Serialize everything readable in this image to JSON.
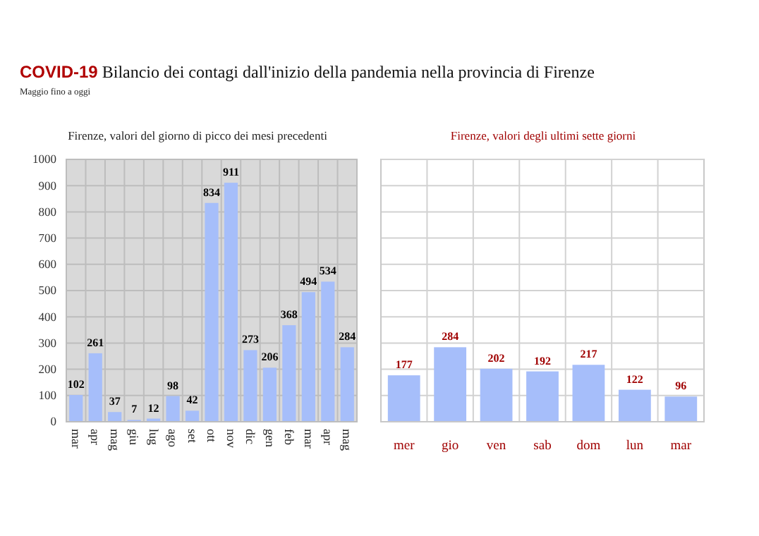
{
  "chart_data": [
    {
      "type": "other",
      "title": "COVID-19 Bilancio dei contagi dall'inizio della pandemia nella provincia di Firenze",
      "subtitle": "Maggio fino a oggi"
    },
    {
      "type": "bar",
      "title": "Firenze, valori del giorno di picco dei mesi precedenti",
      "categories": [
        "mar",
        "apr",
        "mag",
        "giu",
        "lug",
        "ago",
        "set",
        "ott",
        "nov",
        "dic",
        "gen",
        "feb",
        "mar",
        "apr",
        "mag"
      ],
      "values": [
        102,
        261,
        37,
        7,
        12,
        98,
        42,
        834,
        911,
        273,
        206,
        368,
        494,
        534,
        284
      ],
      "color": "#a6befa",
      "ylim": [
        0,
        1000
      ],
      "yticks": [
        0,
        100,
        200,
        300,
        400,
        500,
        600,
        700,
        800,
        900,
        1000
      ],
      "grid": true,
      "data_labels": true
    },
    {
      "type": "bar",
      "title": "Firenze, valori degli ultimi sette giorni",
      "categories": [
        "mer",
        "gio",
        "ven",
        "sab",
        "dom",
        "lun",
        "mar"
      ],
      "values": [
        177,
        284,
        202,
        192,
        217,
        122,
        96
      ],
      "color": "#a6befa",
      "ylim": [
        0,
        1000
      ],
      "yticks": [
        {
          "value": 0,
          "label": null
        },
        {
          "value": 100,
          "label": null
        },
        {
          "value": 200,
          "label": null
        },
        {
          "value": 300,
          "label": null
        },
        {
          "value": 400,
          "label": null
        },
        {
          "value": 500,
          "label": null
        },
        {
          "value": 600,
          "label": null
        },
        {
          "value": 700,
          "label": null
        },
        {
          "value": 800,
          "label": null
        },
        {
          "value": 900,
          "label": null
        },
        {
          "value": 1000,
          "label": null
        }
      ],
      "grid": true,
      "data_labels": true,
      "tick_labels": "x"
    }
  ]
}
